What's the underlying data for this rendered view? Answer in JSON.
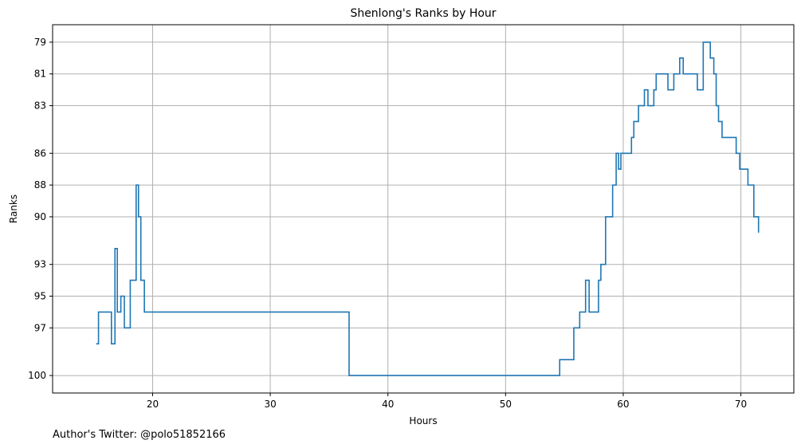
{
  "footer": "Author's Twitter: @polo51852166",
  "chart_data": {
    "type": "line",
    "step": true,
    "title": "Shenlong's Ranks by Hour",
    "xlabel": "Hours",
    "ylabel": "Ranks",
    "xlim": [
      11.5,
      74.5
    ],
    "ylim": [
      101.1,
      77.9
    ],
    "y_inverted": true,
    "grid": true,
    "x_ticks": [
      20,
      30,
      40,
      50,
      60,
      70
    ],
    "y_ticks": [
      79,
      81,
      83,
      86,
      88,
      90,
      93,
      95,
      97,
      100
    ],
    "color": "#1f77b4",
    "x": [
      15.2,
      15.4,
      16.2,
      16.5,
      16.8,
      17.0,
      17.3,
      17.6,
      18.1,
      18.6,
      18.8,
      19.0,
      19.3,
      36.7,
      54.6,
      55.8,
      56.3,
      56.8,
      57.1,
      57.9,
      58.1,
      58.5,
      59.1,
      59.4,
      59.6,
      59.8,
      60.7,
      60.9,
      61.3,
      61.8,
      62.1,
      62.6,
      62.8,
      63.8,
      64.3,
      64.8,
      65.1,
      66.3,
      66.8,
      67.4,
      67.7,
      67.9,
      68.1,
      68.4,
      69.6,
      69.9,
      70.6,
      71.1,
      71.5
    ],
    "y": [
      98,
      96,
      96,
      98,
      92,
      96,
      95,
      97,
      94,
      88,
      90,
      94,
      96,
      100,
      99,
      97,
      96,
      94,
      96,
      94,
      93,
      90,
      88,
      86,
      87,
      86,
      85,
      84,
      83,
      82,
      83,
      82,
      81,
      82,
      81,
      80,
      81,
      82,
      79,
      80,
      81,
      83,
      84,
      85,
      86,
      87,
      88,
      90,
      91
    ]
  }
}
